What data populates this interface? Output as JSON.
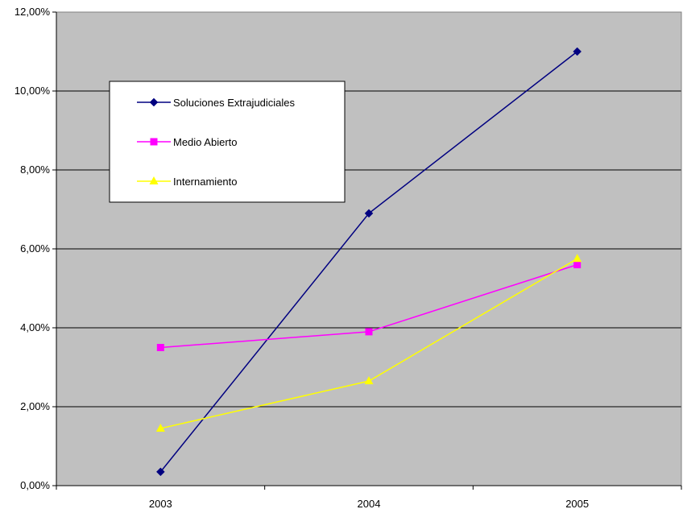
{
  "chart_data": {
    "type": "line",
    "categories": [
      "2003",
      "2004",
      "2005"
    ],
    "series": [
      {
        "name": "Soluciones Extrajudiciales",
        "values": [
          0.35,
          6.9,
          11.0
        ],
        "color": "#000080",
        "marker": "diamond"
      },
      {
        "name": "Medio Abierto",
        "values": [
          3.5,
          3.9,
          5.6
        ],
        "color": "#ff00ff",
        "marker": "square"
      },
      {
        "name": "Internamiento",
        "values": [
          1.45,
          2.65,
          5.75
        ],
        "color": "#ffff00",
        "marker": "triangle"
      }
    ],
    "y_ticks": [
      "0,00%",
      "2,00%",
      "4,00%",
      "6,00%",
      "8,00%",
      "10,00%",
      "12,00%"
    ],
    "ylim": [
      0,
      12
    ],
    "grid": true,
    "plot_background": "#c0c0c0",
    "legend_position": "top-left inside plot"
  }
}
